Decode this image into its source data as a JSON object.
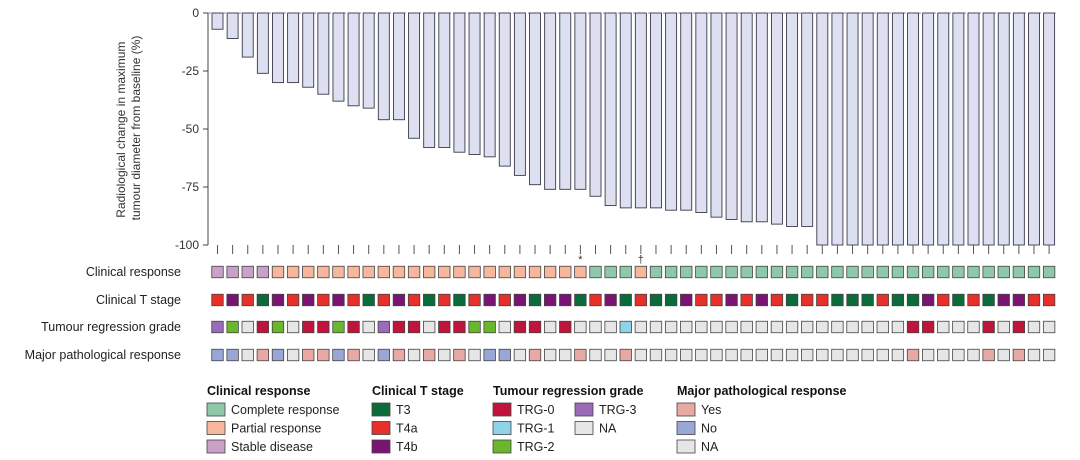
{
  "chart_data": {
    "type": "bar",
    "ylabel": "Radiological change in maximum tumour diameter from baseline (%)",
    "ylabel_lines": [
      "Radiological change in maximum",
      "tumour diameter from baseline (%)"
    ],
    "ylim": [
      -100,
      0
    ],
    "yticks": [
      0,
      -25,
      -50,
      -75,
      -100
    ],
    "grid": false,
    "values": [
      -7,
      -11,
      -19,
      -26,
      -30,
      -30,
      -32,
      -35,
      -38,
      -40,
      -41,
      -46,
      -46,
      -54,
      -58,
      -58,
      -60,
      -61,
      -62,
      -66,
      -70,
      -74,
      -76,
      -76,
      -76,
      -79,
      -83,
      -84,
      -84,
      -84,
      -85,
      -85,
      -86,
      -88,
      -89,
      -90,
      -90,
      -91,
      -92,
      -92,
      -100,
      -100,
      -100,
      -100,
      -100,
      -100,
      -100,
      -100,
      -100,
      -100,
      -100,
      -100,
      -100,
      -100,
      -100,
      -100
    ],
    "markers": [
      {
        "index": 24,
        "symbol": "*"
      },
      {
        "index": 28,
        "symbol": "†"
      }
    ],
    "bar_color": "#dde0f0",
    "tracks": [
      {
        "label": "Clinical response",
        "codes": [
          "S",
          "S",
          "S",
          "S",
          "P",
          "P",
          "P",
          "P",
          "P",
          "P",
          "P",
          "P",
          "P",
          "P",
          "P",
          "P",
          "P",
          "P",
          "P",
          "P",
          "P",
          "P",
          "P",
          "P",
          "P",
          "C",
          "C",
          "C",
          "P",
          "C",
          "C",
          "C",
          "C",
          "C",
          "C",
          "C",
          "C",
          "C",
          "C",
          "C",
          "C",
          "C",
          "C",
          "C",
          "C",
          "C",
          "C",
          "C",
          "C",
          "C",
          "C",
          "C",
          "C",
          "C",
          "C",
          "C"
        ]
      },
      {
        "label": "Clinical T stage",
        "codes": [
          "A",
          "B",
          "A",
          "3",
          "B",
          "A",
          "B",
          "A",
          "B",
          "A",
          "3",
          "A",
          "B",
          "A",
          "3",
          "A",
          "3",
          "A",
          "B",
          "A",
          "B",
          "3",
          "B",
          "B",
          "3",
          "A",
          "B",
          "3",
          "A",
          "3",
          "3",
          "B",
          "A",
          "A",
          "B",
          "A",
          "B",
          "A",
          "3",
          "A",
          "A",
          "3",
          "3",
          "3",
          "A",
          "3",
          "3",
          "B",
          "A",
          "3",
          "A",
          "3",
          "B",
          "B",
          "A",
          "A"
        ]
      },
      {
        "label": "Tumour regression grade",
        "codes": [
          "3",
          "2",
          "N",
          "0",
          "2",
          "N",
          "0",
          "0",
          "2",
          "0",
          "N",
          "3",
          "0",
          "0",
          "N",
          "0",
          "0",
          "2",
          "2",
          "N",
          "0",
          "0",
          "N",
          "0",
          "N",
          "N",
          "N",
          "1",
          "N",
          "N",
          "N",
          "N",
          "N",
          "N",
          "N",
          "N",
          "N",
          "N",
          "N",
          "N",
          "N",
          "N",
          "N",
          "N",
          "N",
          "N",
          "0",
          "0",
          "N",
          "N",
          "N",
          "0",
          "N",
          "0",
          "N",
          "N"
        ]
      },
      {
        "label": "Major pathological response",
        "codes": [
          "O",
          "O",
          "N",
          "Y",
          "O",
          "N",
          "Y",
          "Y",
          "O",
          "Y",
          "N",
          "O",
          "Y",
          "N",
          "Y",
          "N",
          "Y",
          "N",
          "O",
          "O",
          "N",
          "Y",
          "N",
          "N",
          "Y",
          "N",
          "N",
          "Y",
          "N",
          "N",
          "N",
          "N",
          "N",
          "N",
          "N",
          "N",
          "N",
          "N",
          "N",
          "N",
          "N",
          "N",
          "N",
          "N",
          "N",
          "N",
          "Y",
          "N",
          "N",
          "N",
          "N",
          "Y",
          "N",
          "Y",
          "N",
          "N"
        ]
      }
    ],
    "legend_groups": [
      {
        "title": "Clinical response",
        "track": 0,
        "items": [
          {
            "code": "C",
            "label": "Complete response",
            "color": "#8fc7aa"
          },
          {
            "code": "P",
            "label": "Partial response",
            "color": "#f6b79c"
          },
          {
            "code": "S",
            "label": "Stable disease",
            "color": "#c9a0c6"
          }
        ]
      },
      {
        "title": "Clinical T stage",
        "track": 1,
        "items": [
          {
            "code": "3",
            "label": "T3",
            "color": "#0b6b3a"
          },
          {
            "code": "A",
            "label": "T4a",
            "color": "#e7302a"
          },
          {
            "code": "B",
            "label": "T4b",
            "color": "#7a1371"
          }
        ]
      },
      {
        "title": "Tumour regression grade",
        "track": 2,
        "items": [
          {
            "code": "0",
            "label": "TRG-0",
            "color": "#c0143c"
          },
          {
            "code": "1",
            "label": "TRG-1",
            "color": "#8fd3e8"
          },
          {
            "code": "2",
            "label": "TRG-2",
            "color": "#6ab72e"
          },
          {
            "code": "3",
            "label": "TRG-3",
            "color": "#9a6bb8"
          },
          {
            "code": "N",
            "label": "NA",
            "color": "#e6e6e6"
          }
        ]
      },
      {
        "title": "Major pathological response",
        "track": 3,
        "items": [
          {
            "code": "Y",
            "label": "Yes",
            "color": "#e8a8a4"
          },
          {
            "code": "O",
            "label": "No",
            "color": "#9aa6d6"
          },
          {
            "code": "N",
            "label": "NA",
            "color": "#e6e6e6"
          }
        ]
      }
    ]
  }
}
